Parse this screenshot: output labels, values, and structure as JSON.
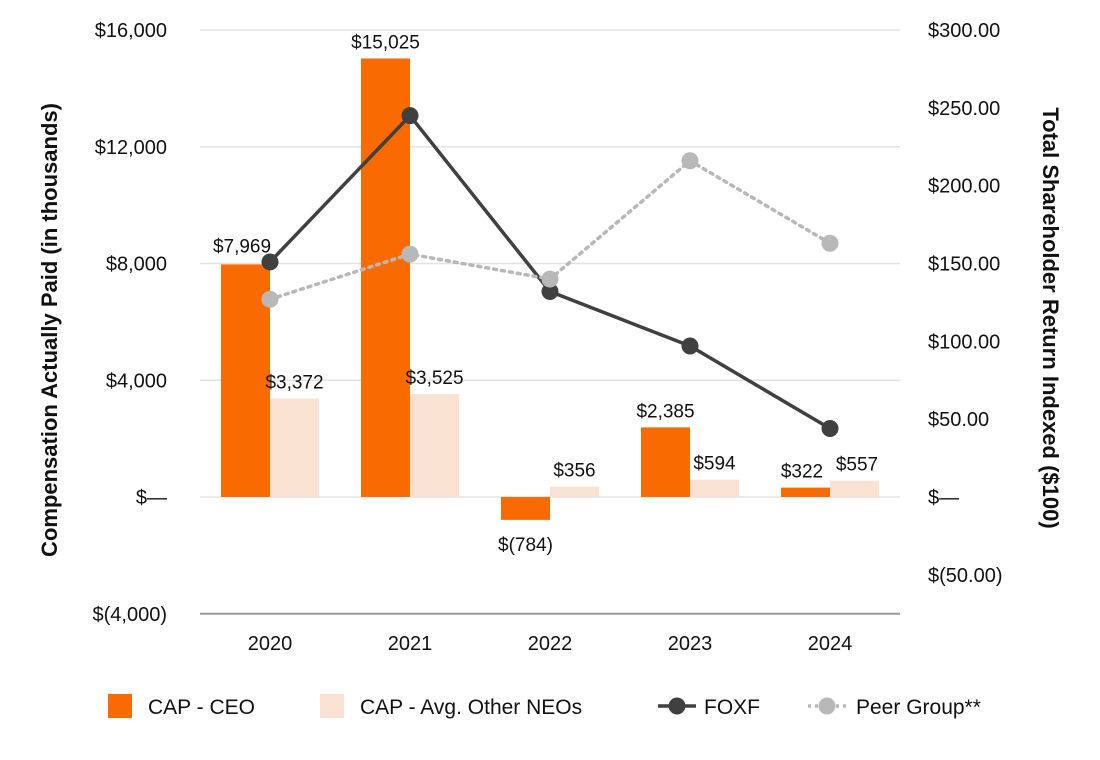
{
  "chart_data": {
    "type": "bar",
    "categories": [
      "2020",
      "2021",
      "2022",
      "2023",
      "2024"
    ],
    "left_axis": {
      "title": "Compensation Actually Paid (in thousands)",
      "ylim": [
        -4000,
        16000
      ],
      "ticks": [
        16000,
        12000,
        8000,
        4000,
        0,
        -4000
      ],
      "tick_labels": [
        "$16,000",
        "$12,000",
        "$8,000",
        "$4,000",
        "$—",
        "$(4,000)"
      ]
    },
    "right_axis": {
      "title": "Total Shareholder Return Indexed ($100)",
      "ylim": [
        -75,
        300
      ],
      "ticks": [
        300,
        250,
        200,
        150,
        100,
        50,
        0,
        -50
      ],
      "tick_labels": [
        "$300.00",
        "$250.00",
        "$200.00",
        "$150.00",
        "$100.00",
        "$50.00",
        "$—",
        "$(50.00)"
      ]
    },
    "series": [
      {
        "name": "CAP - CEO",
        "kind": "bar",
        "axis": "left",
        "color": "#F96B00",
        "values": [
          7969,
          15025,
          -784,
          2385,
          322
        ],
        "labels": [
          "$7,969",
          "$15,025",
          "$(784)",
          "$2,385",
          "$322"
        ]
      },
      {
        "name": "CAP - Avg. Other NEOs",
        "kind": "bar",
        "axis": "left",
        "color": "#FAE2D3",
        "values": [
          3372,
          3525,
          356,
          594,
          557
        ],
        "labels": [
          "$3,372",
          "$3,525",
          "$356",
          "$594",
          "$557"
        ]
      },
      {
        "name": "FOXF",
        "kind": "line",
        "axis": "right",
        "color": "#404040",
        "values": [
          151,
          245,
          132,
          97,
          44
        ]
      },
      {
        "name": "Peer Group**",
        "kind": "line-dotted",
        "axis": "right",
        "color": "#B8B8B8",
        "values": [
          127,
          156,
          140,
          216,
          163
        ]
      }
    ],
    "grid": true,
    "legend": "bottom"
  }
}
